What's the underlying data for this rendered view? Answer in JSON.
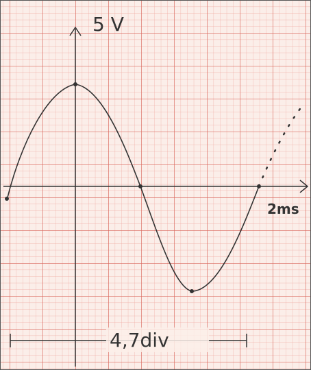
{
  "labels": {
    "voltage": "5 V",
    "time": "2ms",
    "measure": "4,7div"
  }
}
